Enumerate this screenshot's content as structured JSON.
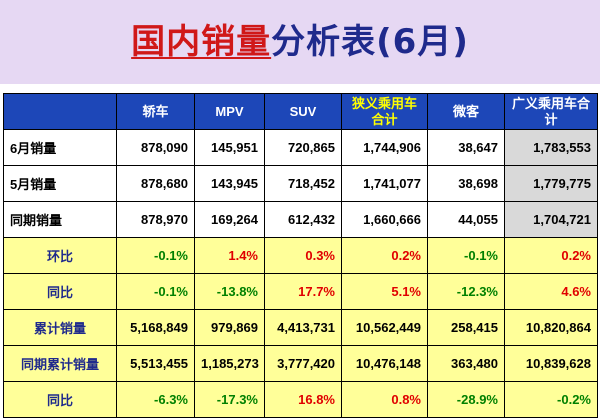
{
  "title": {
    "highlight": "国内销量",
    "rest": "分析表(6月)"
  },
  "colors": {
    "header_bg": "#1d47b8",
    "band_bg": "#e6d8f3",
    "yellow_row": "#ffff99",
    "gray_cell": "#d9d9d9",
    "positive": "#e00000",
    "negative": "#008000"
  },
  "table": {
    "headers": [
      "",
      "轿车",
      "MPV",
      "SUV",
      "狭义乘用车合计",
      "微客",
      "广义乘用车合计"
    ],
    "rows": [
      {
        "label": "6月销量",
        "type": "white",
        "cells": [
          "878,090",
          "145,951",
          "720,865",
          "1,744,906",
          "38,647",
          "1,783,553"
        ]
      },
      {
        "label": "5月销量",
        "type": "white",
        "cells": [
          "878,680",
          "143,945",
          "718,452",
          "1,741,077",
          "38,698",
          "1,779,775"
        ]
      },
      {
        "label": "同期销量",
        "type": "white",
        "cells": [
          "878,970",
          "169,264",
          "612,432",
          "1,660,666",
          "44,055",
          "1,704,721"
        ]
      },
      {
        "label": "环比",
        "type": "yellow",
        "cells": [
          "-0.1%",
          "1.4%",
          "0.3%",
          "0.2%",
          "-0.1%",
          "0.2%"
        ]
      },
      {
        "label": "同比",
        "type": "yellow",
        "cells": [
          "-0.1%",
          "-13.8%",
          "17.7%",
          "5.1%",
          "-12.3%",
          "4.6%"
        ]
      },
      {
        "label": "累计销量",
        "type": "yellow",
        "cells": [
          "5,168,849",
          "979,869",
          "4,413,731",
          "10,562,449",
          "258,415",
          "10,820,864"
        ]
      },
      {
        "label": "同期累计销量",
        "type": "yellow",
        "cells": [
          "5,513,455",
          "1,185,273",
          "3,777,420",
          "10,476,148",
          "363,480",
          "10,839,628"
        ]
      },
      {
        "label": "同比",
        "type": "yellow",
        "cells": [
          "-6.3%",
          "-17.3%",
          "16.8%",
          "0.8%",
          "-28.9%",
          "-0.2%"
        ]
      }
    ]
  }
}
